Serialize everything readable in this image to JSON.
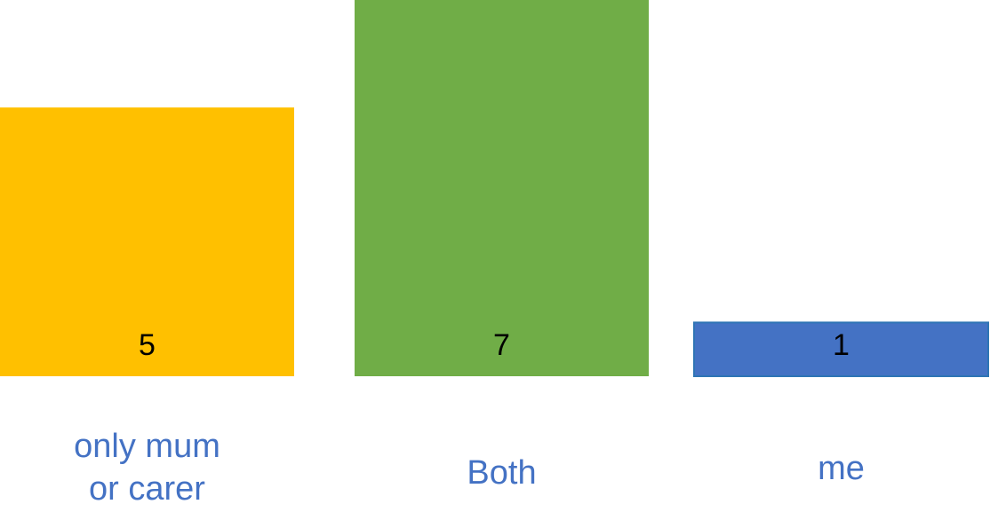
{
  "chart_data": {
    "type": "bar",
    "categories": [
      "only mum or carer",
      "Both",
      "me"
    ],
    "category_lines": [
      [
        "only mum",
        "or carer"
      ],
      [
        "Both"
      ],
      [
        "me"
      ]
    ],
    "values": [
      5,
      7,
      1
    ],
    "bar_colors": [
      "#ffc000",
      "#70ad47",
      "#4472c4"
    ],
    "bar_outline_colors": [
      null,
      null,
      "#2f75b5"
    ],
    "label_color": "#4472c4",
    "value_label_color": "#000000",
    "title": "",
    "xlabel": "",
    "ylabel": "",
    "ylim": [
      0,
      7
    ],
    "grid": false,
    "legend": "none"
  }
}
